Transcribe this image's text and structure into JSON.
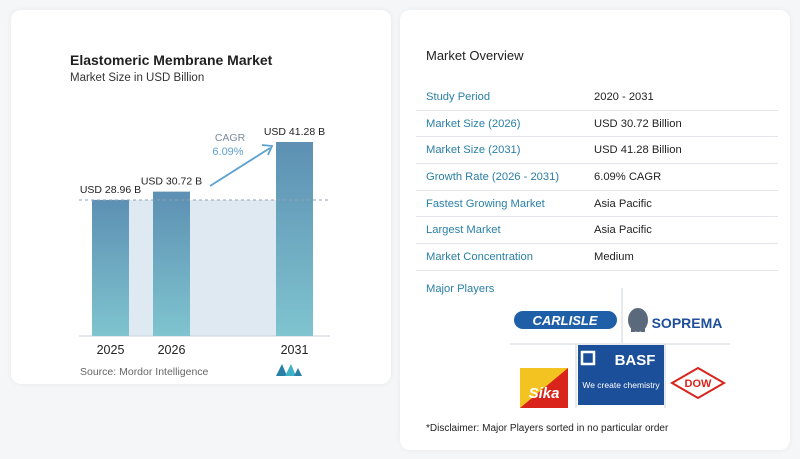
{
  "chart": {
    "title": "Elastomeric Membrane Market",
    "subtitle": "Market Size in USD Billion",
    "source": "Source:  Mordor Intelligence",
    "cagr_label": "CAGR",
    "cagr_value": "6.09%"
  },
  "chart_data": {
    "type": "bar",
    "categories": [
      "2025",
      "2026",
      "2031"
    ],
    "values": [
      28.96,
      30.72,
      41.28
    ],
    "data_labels": [
      "USD 28.96 B",
      "USD 30.72 B",
      "USD 41.28 B"
    ],
    "title": "Elastomeric Membrane Market",
    "subtitle": "Market Size in USD Billion",
    "xlabel": "",
    "ylabel": "",
    "ylim": [
      0,
      41.28
    ],
    "grid": false,
    "annotations": [
      "CAGR 6.09%"
    ],
    "colors": {
      "bar_top": "#5d90b3",
      "bar_bottom": "#7fc4cf",
      "band": "#dfe9f2",
      "arrow": "#5fa1cf"
    }
  },
  "overview": {
    "title": "Market Overview",
    "rows": [
      {
        "label": "Study Period",
        "value": "2020 - 2031"
      },
      {
        "label": "Market Size (2026)",
        "value": "USD 30.72 Billion"
      },
      {
        "label": "Market Size (2031)",
        "value": "USD 41.28 Billion"
      },
      {
        "label": "Growth Rate (2026 - 2031)",
        "value": "6.09% CAGR"
      },
      {
        "label": "Fastest Growing Market",
        "value": "Asia Pacific"
      },
      {
        "label": "Largest Market",
        "value": "Asia Pacific"
      },
      {
        "label": "Market Concentration",
        "value": "Medium"
      }
    ],
    "players_label": "Major Players",
    "players": [
      "CARLISLE",
      "SOPREMA",
      "Sika",
      "BASF",
      "We create chemistry",
      "DOW"
    ],
    "disclaimer": "*Disclaimer: Major Players sorted in no particular order"
  }
}
